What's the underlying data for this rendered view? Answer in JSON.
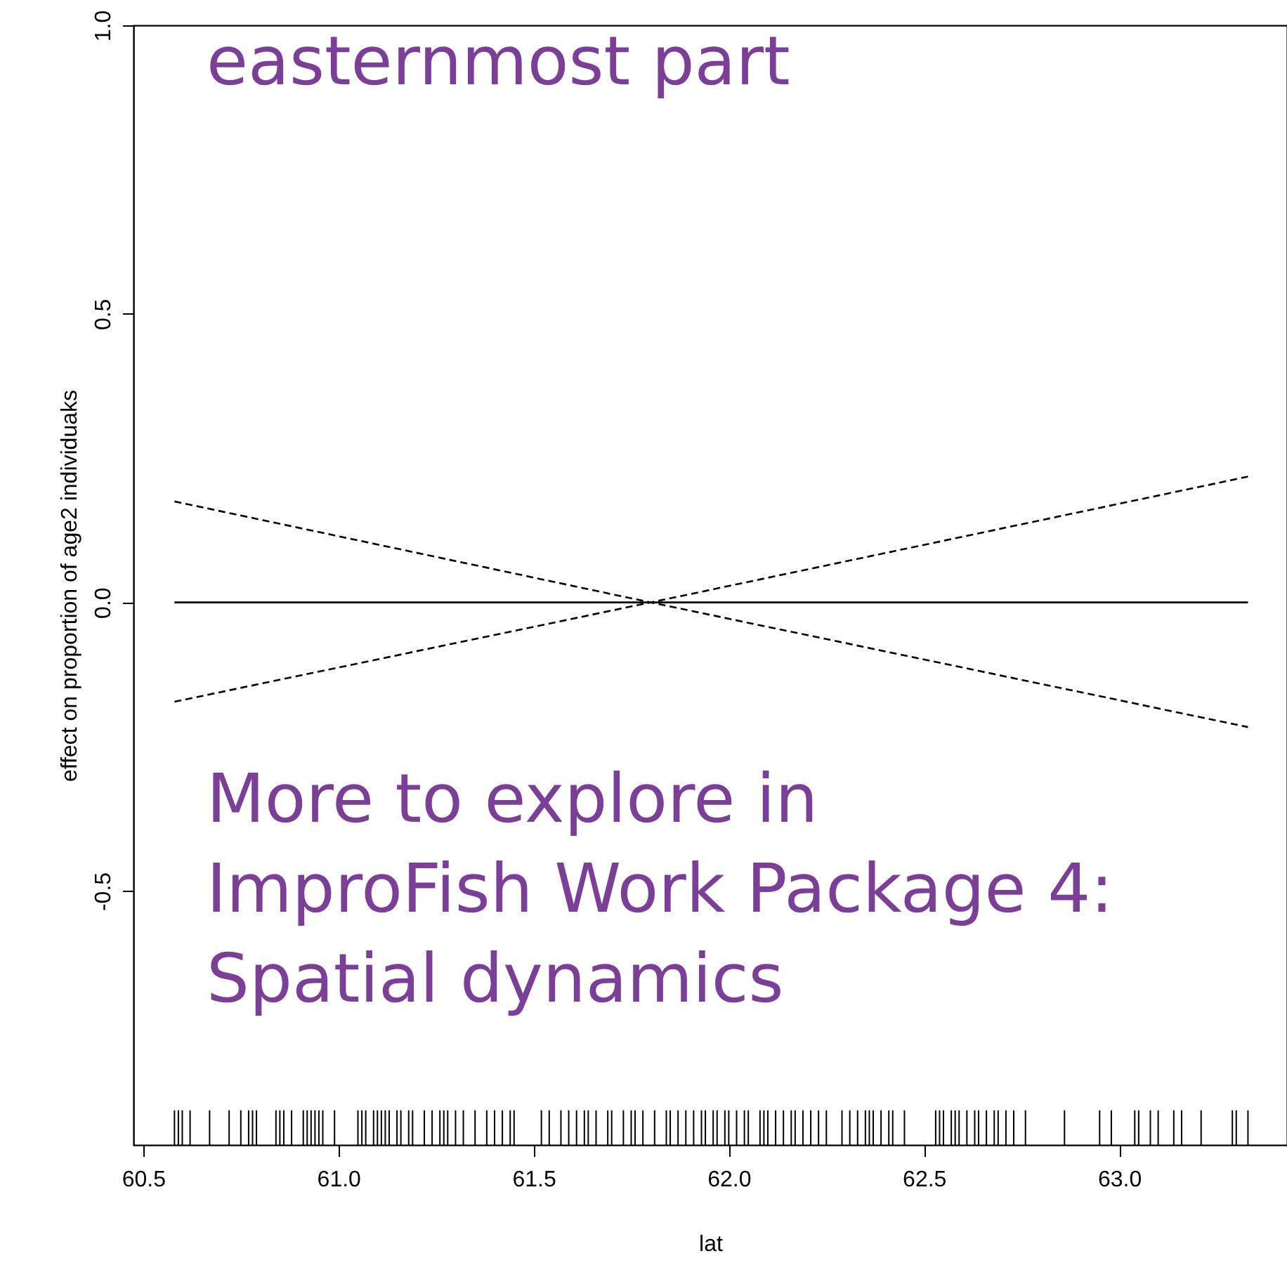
{
  "chart_data": {
    "type": "line",
    "xlabel": "lat",
    "ylabel": "effect on proportion of age2 individuaks",
    "xlim": [
      60.475,
      63.43
    ],
    "ylim": [
      -0.94,
      1.0
    ],
    "xticks": [
      60.5,
      {
        "value": 61,
        "label": "61.0"
      },
      61.5,
      {
        "value": 62,
        "label": "62.0"
      },
      62.5,
      {
        "value": 63,
        "label": "63.0"
      }
    ],
    "yticks": [
      -0.5,
      {
        "value": 0,
        "label": "0.0"
      },
      0.5,
      {
        "value": 1,
        "label": "1.0"
      }
    ],
    "grid": false,
    "series": [
      {
        "color": "#000000",
        "line_style": "solid",
        "x": [
          60.58,
          63.33
        ],
        "values": [
          0,
          0
        ]
      },
      {
        "color": "#000000",
        "line_style": "dashed",
        "x": [
          60.58,
          61.8,
          63.33
        ],
        "values": [
          0.175,
          0,
          0.218
        ]
      },
      {
        "color": "#000000",
        "line_style": "dashed",
        "x": [
          60.58,
          61.8,
          63.33
        ],
        "values": [
          -0.172,
          0,
          -0.216
        ]
      },
      {
        "type": "bar",
        "base": [
          -0.94,
          -0.94,
          -0.94,
          -0.94,
          -0.94,
          -0.94,
          -0.94,
          -0.94,
          -0.94,
          -0.94,
          -0.94,
          -0.94,
          -0.94,
          -0.94,
          -0.94,
          -0.94,
          -0.94,
          -0.94,
          -0.94,
          -0.94,
          -0.94,
          -0.94,
          -0.94,
          -0.94,
          -0.94,
          -0.94,
          -0.94,
          -0.94,
          -0.94,
          -0.94,
          -0.94,
          -0.94,
          -0.94,
          -0.94,
          -0.94,
          -0.94,
          -0.94,
          -0.94,
          -0.94,
          -0.94,
          -0.94,
          -0.94,
          -0.94,
          -0.94,
          -0.94,
          -0.94,
          -0.94,
          -0.94,
          -0.94,
          -0.94,
          -0.94,
          -0.94,
          -0.94,
          -0.94,
          -0.94,
          -0.94,
          -0.94,
          -0.94,
          -0.94,
          -0.94,
          -0.94,
          -0.94,
          -0.94,
          -0.94,
          -0.94,
          -0.94,
          -0.94,
          -0.94,
          -0.94,
          -0.94,
          -0.94,
          -0.94,
          -0.94,
          -0.94,
          -0.94,
          -0.94,
          -0.94,
          -0.94,
          -0.94,
          -0.94,
          -0.94,
          -0.94,
          -0.94,
          -0.94,
          -0.94,
          -0.94,
          -0.94,
          -0.94,
          -0.94,
          -0.94,
          -0.94,
          -0.94,
          -0.94,
          -0.94,
          -0.94,
          -0.94,
          -0.94,
          -0.94,
          -0.94,
          -0.94,
          -0.94,
          -0.94,
          -0.94,
          -0.94,
          -0.94,
          -0.94,
          -0.94,
          -0.94,
          -0.94,
          -0.94,
          -0.94,
          -0.94,
          -0.94,
          -0.94,
          -0.94,
          -0.94,
          -0.94,
          -0.94,
          -0.94,
          -0.94,
          -0.94,
          -0.94,
          -0.94,
          -0.94
        ],
        "color": "#000000",
        "values": [
          0.06,
          0.06,
          0.06,
          0.06,
          0.06,
          0.06,
          0.06,
          0.06,
          0.06,
          0.06,
          0.06,
          0.06,
          0.06,
          0.06,
          0.06,
          0.06,
          0.06,
          0.06,
          0.06,
          0.06,
          0.06,
          0.06,
          0.06,
          0.06,
          0.06,
          0.06,
          0.06,
          0.06,
          0.06,
          0.06,
          0.06,
          0.06,
          0.06,
          0.06,
          0.06,
          0.06,
          0.06,
          0.06,
          0.06,
          0.06,
          0.06,
          0.06,
          0.06,
          0.06,
          0.06,
          0.06,
          0.06,
          0.06,
          0.06,
          0.06,
          0.06,
          0.06,
          0.06,
          0.06,
          0.06,
          0.06,
          0.06,
          0.06,
          0.06,
          0.06,
          0.06,
          0.06,
          0.06,
          0.06,
          0.06,
          0.06,
          0.06,
          0.06,
          0.06,
          0.06,
          0.06,
          0.06,
          0.06,
          0.06,
          0.06,
          0.06,
          0.06,
          0.06,
          0.06,
          0.06,
          0.06,
          0.06,
          0.06,
          0.06,
          0.06,
          0.06,
          0.06,
          0.06,
          0.06,
          0.06,
          0.06,
          0.06,
          0.06,
          0.06,
          0.06,
          0.06,
          0.06,
          0.06,
          0.06,
          0.06,
          0.06,
          0.06,
          0.06,
          0.06,
          0.06,
          0.06,
          0.06,
          0.06,
          0.06,
          0.06,
          0.06,
          0.06,
          0.06,
          0.06,
          0.06,
          0.06,
          0.06,
          0.06,
          0.06,
          0.06,
          0.06,
          0.06,
          0.06,
          0.06
        ],
        "x": [
          60.58,
          60.59,
          60.6,
          60.62,
          60.67,
          60.72,
          60.75,
          60.77,
          60.78,
          60.79,
          60.84,
          60.85,
          60.86,
          60.88,
          60.91,
          60.92,
          60.93,
          60.94,
          60.95,
          60.96,
          60.99,
          61.05,
          61.06,
          61.07,
          61.09,
          61.1,
          61.11,
          61.12,
          61.13,
          61.15,
          61.16,
          61.18,
          61.19,
          61.22,
          61.24,
          61.26,
          61.27,
          61.28,
          61.3,
          61.32,
          61.35,
          61.38,
          61.4,
          61.42,
          61.44,
          61.45,
          61.52,
          61.54,
          61.57,
          61.59,
          61.61,
          61.63,
          61.64,
          61.66,
          61.69,
          61.7,
          61.73,
          61.75,
          61.76,
          61.78,
          61.81,
          61.84,
          61.85,
          61.87,
          61.89,
          61.91,
          61.93,
          61.94,
          61.96,
          61.97,
          61.99,
          62.0,
          62.02,
          62.04,
          62.05,
          62.08,
          62.09,
          62.1,
          62.12,
          62.14,
          62.16,
          62.17,
          62.19,
          62.21,
          62.23,
          62.25,
          62.29,
          62.31,
          62.33,
          62.35,
          62.36,
          62.37,
          62.39,
          62.41,
          62.42,
          62.45,
          62.53,
          62.54,
          62.55,
          62.57,
          62.58,
          62.59,
          62.61,
          62.63,
          62.64,
          62.66,
          62.68,
          62.69,
          62.71,
          62.73,
          62.76,
          62.86,
          62.95,
          62.98,
          63.04,
          63.05,
          63.08,
          63.1,
          63.14,
          63.16,
          63.21,
          63.29,
          63.3,
          63.33
        ]
      }
    ],
    "annotations": [
      "easternmost part",
      "More to explore in\nImproFish Work Package 4:\nSpatial dynamics"
    ]
  }
}
